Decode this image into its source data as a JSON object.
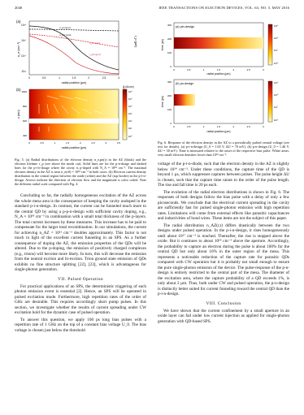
{
  "header": {
    "page_number": "2040",
    "journal": "IEEE TRANSACTIONS ON ELECTRON DEVICES, VOL. 63, NO. 5, MAY 2016"
  },
  "figure5": {
    "panel_a": {
      "label": "(a)",
      "ylabel": "n_e (cm⁻³)",
      "xlabel": "radial position (µm)",
      "curve_labels": [
        "n_pn (µm)",
        "n_pin (µm)",
        "r_pn (µm)",
        "r_pin (µm)"
      ],
      "right_ylabel": "r_p (µm)",
      "yticks": [
        "10¹⁸",
        "10¹⁶",
        "10¹⁴",
        "10¹²"
      ],
      "xticks": [
        "0",
        "0.5",
        "1",
        "1.5",
        "2",
        "2.5",
        "3"
      ]
    },
    "panel_b": {
      "label": "(b)",
      "ylabel": "z (nm)",
      "xlabel": "radial position (µm)",
      "colorbar_title": "|j| (A/cm²)",
      "colorbar_ticks": [
        "10⁶",
        "10⁵",
        "10⁴",
        "10³",
        "10²",
        "10¹",
        "10⁰"
      ],
      "yticks": [
        "1000",
        "800",
        "600",
        "400"
      ],
      "xticks": [
        "0",
        "0.5",
        "1",
        "1.5",
        "2",
        "2.5",
        "3",
        "3.5"
      ]
    },
    "caption": "Fig. 5. (a) Radial distributions of the electron density n_e,pn(r) in the AZ (black) and the electron lifetime τ_p (see above the mode cut). Solid lines are for the p-n-doage and dashed lines for the p-i-n-doage where the cavity is p-doped with N_A = 10¹⁸ cm⁻³. The maximal electron density in the AZ is near n_e(r0) = 10¹⁸ cm⁻³ in both cases. (b) Electron current density distribution in the central region between the oxide (white) and the AZ (top border) in the p-i-n-design. Arrows indicate the direction of electron flow and the magnitude is color coded. Note the different radial scale compared with Fig. 4."
  },
  "figure6": {
    "panel_a": {
      "label": "(a) pin-design",
      "ylabel": "time (ps)",
      "xlabel": "radial position (µm)",
      "yticks": [
        "300",
        "200",
        "100",
        "0"
      ],
      "xticks": [
        "0",
        "0.5",
        "1",
        "1.5",
        "2",
        "2.5",
        "3"
      ],
      "colorbar_ticks": [
        "10¹⁹",
        "10¹⁸",
        "10¹⁷",
        "10¹⁶"
      ]
    },
    "panel_b": {
      "label": "(b) pn-design",
      "ylabel": "time (ps)",
      "xlabel": "radial position (µm)",
      "yticks": [
        "300",
        "200",
        "100",
        "0"
      ],
      "xticks": [
        "0",
        "0.5",
        "1",
        "1.5",
        "2",
        "2.5",
        "3"
      ],
      "colorbar_ticks": [
        "10¹⁹",
        "10¹⁸",
        "10¹⁷",
        "10¹⁶"
      ]
    },
    "caption": "Fig. 6. Response of the electron density in the AZ to a periodically pulsed central voltage (see text for details). (a) p-i-n-design (U_0 = 1.65 V, ΔU = 70 mV). (b) p-n-design (U_0 = 1.46 V, ΔU = 30 mV). Time is measured relative to the onset of the respective bias pulse. White areas: very small electron densities lower than 10¹⁴ cm⁻³."
  },
  "left_column": {
    "paragraphs": [
      "Concluding so far, the radially homogeneous excitation of the AZ across the whole mesa area is the consequence of keeping the cavity undoped in the standard p-i-n-design. In contrast, the current can be funneled much more to the central QD by using a p-p-n-design with sufficient cavity doping, e.g., N_A ≈ 10¹⁸ cm⁻³ in combination with a small total thickness of the p-layers. The total current increases by these measures. This increase has to be paid to compensate for the larger total recombination. In our simulations, the current for achieving n_AZ = 10¹³ cm⁻³ doubles approximately. This factor is not much in light of the excellent current funneling in an SPS. As a further consequence of doping the AZ, the emission properties of the QDs will be altered. Due to the p-doping, the emission of positively charged complexes (e.g., trions) will become more likely. In turn, this will decrease the emission from the neutral exciton and bi-exciton. Trion ground state emission of QDs exhibits no fine structure splitting [22], [23], which is advantageous for single-photon generation."
    ],
    "section_title": "VII. Pulsed Operation",
    "paragraphs2": [
      "For practical applications of an SPS, the deterministic triggering of each photon emission event is essential [2]. Hence, an SPS will be operated in pulsed excitation mode. Furthermore, high repetition rates of the order of GHz are desirable. This requires accordingly short pump pulses. In this section, we investigate whether the results of current spreading under CW excitation hold for the dynamic case of pulsed operation.",
      "To answer this question, we apply 100 ps long bias pulses with a repetition rate of 1 GHz on the top of a constant bias voltage U_0. The bias voltage is chosen just below the threshold"
    ]
  },
  "right_column": {
    "paragraphs": [
      "voltage of the p-i-n-diode, such that the electron density in the AZ is slightly below 10¹⁴ cm⁻³. Under these conditions, the capture time of the QD is beyond 1 µs, which suppresses captures between pulses. The pulse height ΔU is chosen, such that the capture time raises to the order of the pulse length. The rise and fall time is 20 ps each.",
      "The evolution of the radial electron distributions is shown in Fig. 6. The responses of both designs follow the bias pulse with a delay of only a few picoseconds. We conclude that the electrical current spreading in the cavity are sufficiently fast for pulsed single-photon emission with high repetition rates. Limitations will come from external effects like parasitic capacitances and inductivities of bond wires. These items are not the subject of this paper.",
      "The radial distribution n_AZ(r,t) differs drastically between the two designs under pulsed operation. In the p-i-n-design, it rises homogeneously until about 10¹⁷ cm⁻³ is reached. Thereafter, the rise is stopped above the oxide. But it continues to about 10¹⁸ cm⁻³ above the aperture. Accordingly, the probability to capture an electron during the pulse is about 100% for the central QD but only about 10% in the outer region of the mesa. This represents a noticeable reduction of the capture rate for parasitic QDs compared with CW operation but it is probably not small enough to ensure the pure single-photon emission of the device. The pulse-response of the p-n-design is entirely restricted to the central part of the mesa. The diameter of the excitation area, where the capture probability of a QD exceeds 1%, is only about 3 µm. Thus, both under CW and pulsed operation, the p-n-design is distinctly better suited for current funneling toward the central QD than the p-i-n-design."
    ],
    "section_title": "VIII. Conclusion",
    "paragraphs2": [
      "We have shown that the current confinement by a small aperture in an oxide layer can fail under low current injection as applied for single-photon generation with QD-based SPS."
    ]
  },
  "colors": {
    "curve_red": "#d2232a",
    "curve_black": "#111111",
    "heat_high": "#b20000",
    "heat_low": "#fff7b0",
    "arrow": "#ffffff"
  }
}
